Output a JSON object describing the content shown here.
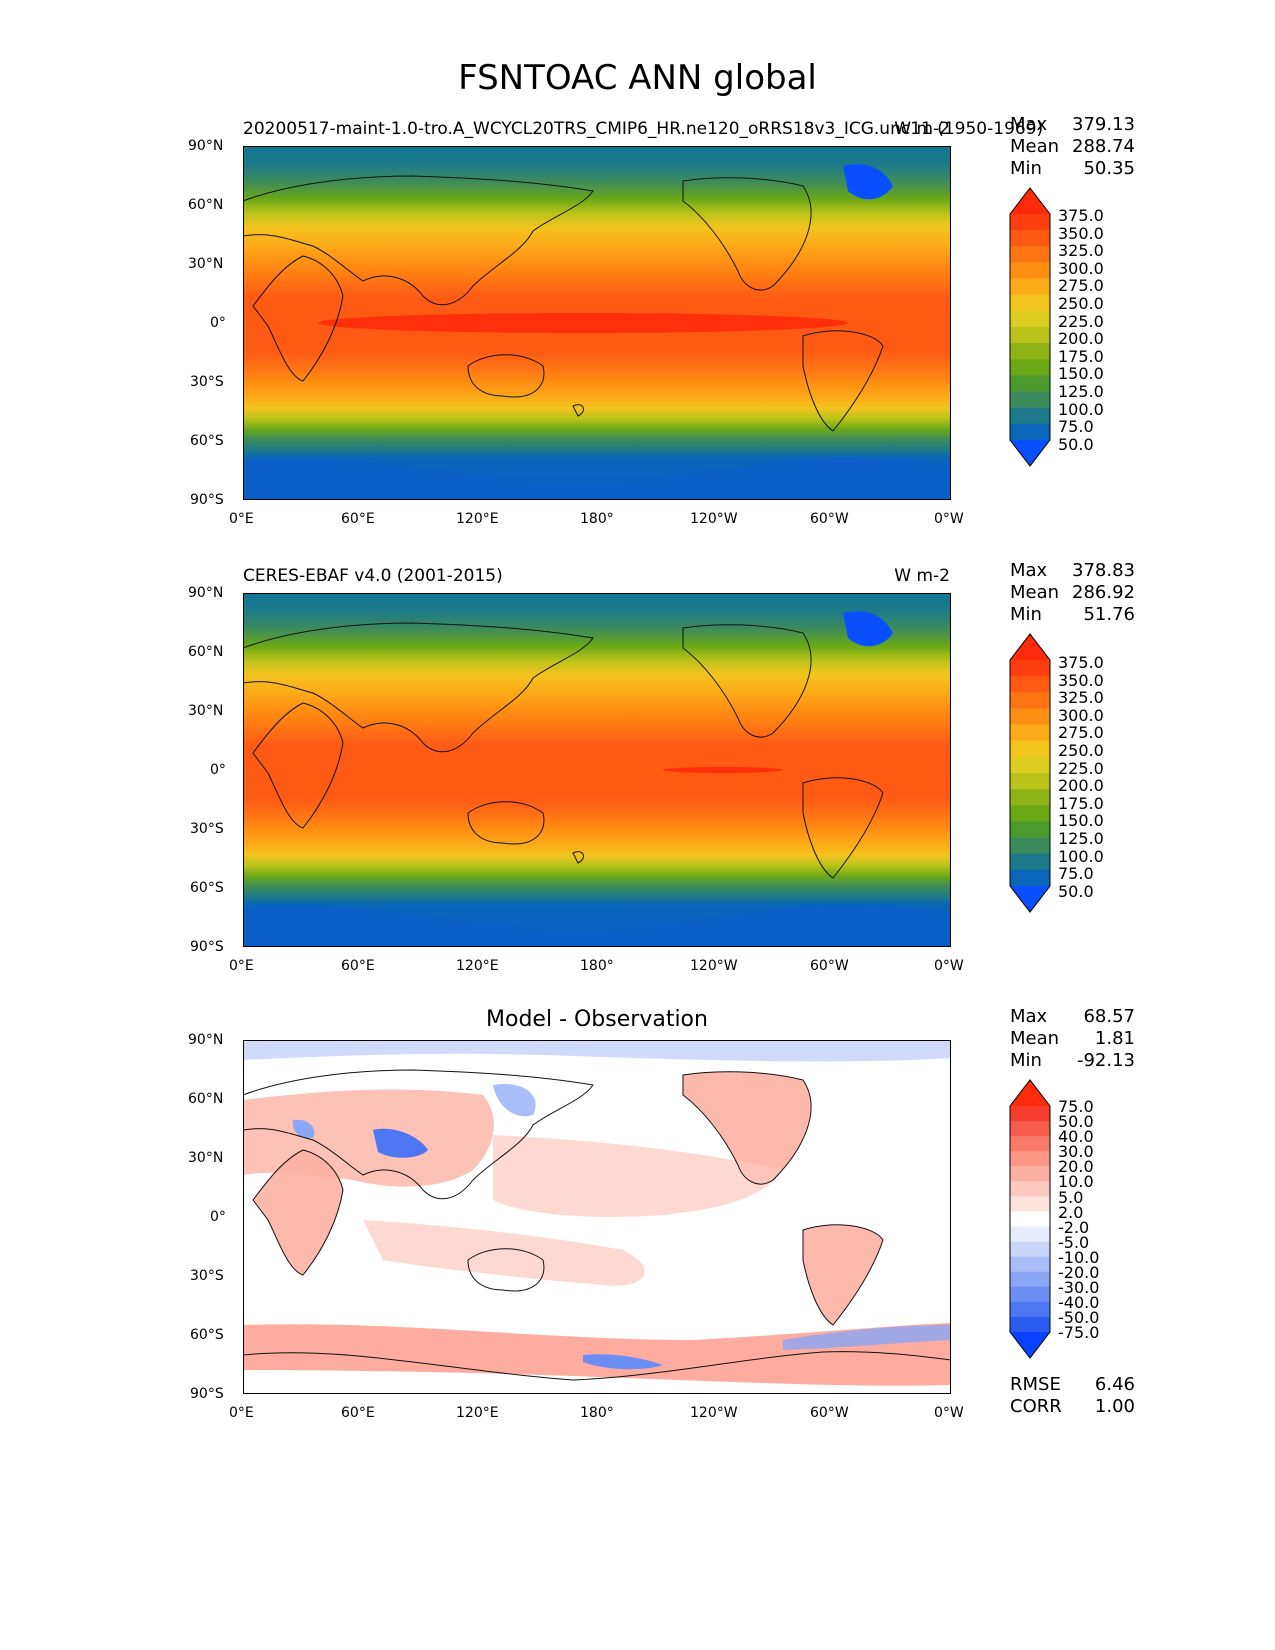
{
  "title": "FSNTOAC ANN global",
  "panels": [
    {
      "id": "test",
      "title_left": "20200517-maint-1.0-tro.A_WCYCL20TRS_CMIP6_HR.ne120_oRRS18v3_ICG.unc11 (1950-1969)",
      "title_right": "W m-2",
      "title_center": "",
      "stats": [
        {
          "label": "Max",
          "value": "379.13"
        },
        {
          "label": "Mean",
          "value": "288.74"
        },
        {
          "label": "Min",
          "value": "50.35"
        }
      ],
      "colorbar": {
        "labels": [
          "375.0",
          "350.0",
          "325.0",
          "300.0",
          "275.0",
          "250.0",
          "225.0",
          "200.0",
          "175.0",
          "150.0",
          "125.0",
          "100.0",
          "75.0",
          "50.0"
        ],
        "colors": [
          "#ff2a0a",
          "#ff3e10",
          "#ff5a14",
          "#ff7514",
          "#ff8f12",
          "#fcab18",
          "#f3c41e",
          "#dccd20",
          "#b9c31a",
          "#8fb316",
          "#6aa816",
          "#4a9a2e",
          "#3c8b5c",
          "#1c7a8a",
          "#0a66b8",
          "#0a4fff"
        ],
        "extend": "both"
      },
      "extra_stats": []
    },
    {
      "id": "reference",
      "title_left": "CERES-EBAF v4.0 (2001-2015)",
      "title_right": "W m-2",
      "title_center": "",
      "stats": [
        {
          "label": "Max",
          "value": "378.83"
        },
        {
          "label": "Mean",
          "value": "286.92"
        },
        {
          "label": "Min",
          "value": "51.76"
        }
      ],
      "colorbar": {
        "labels": [
          "375.0",
          "350.0",
          "325.0",
          "300.0",
          "275.0",
          "250.0",
          "225.0",
          "200.0",
          "175.0",
          "150.0",
          "125.0",
          "100.0",
          "75.0",
          "50.0"
        ],
        "colors": [
          "#ff2a0a",
          "#ff3e10",
          "#ff5a14",
          "#ff7514",
          "#ff8f12",
          "#fcab18",
          "#f3c41e",
          "#dccd20",
          "#b9c31a",
          "#8fb316",
          "#6aa816",
          "#4a9a2e",
          "#3c8b5c",
          "#1c7a8a",
          "#0a66b8",
          "#0a4fff"
        ],
        "extend": "both"
      },
      "extra_stats": []
    },
    {
      "id": "difference",
      "title_left": "",
      "title_right": "",
      "title_center": "Model - Observation",
      "stats": [
        {
          "label": "Max",
          "value": "68.57"
        },
        {
          "label": "Mean",
          "value": "1.81"
        },
        {
          "label": "Min",
          "value": "-92.13"
        }
      ],
      "colorbar": {
        "labels": [
          "75.0",
          "50.0",
          "40.0",
          "30.0",
          "20.0",
          "10.0",
          "5.0",
          "2.0",
          "-2.0",
          "-5.0",
          "-10.0",
          "-20.0",
          "-30.0",
          "-40.0",
          "-50.0",
          "-75.0"
        ],
        "colors": [
          "#ff2a0a",
          "#f53d2e",
          "#f75b4b",
          "#fa7a69",
          "#fc9787",
          "#fdb1a3",
          "#fec9bf",
          "#ffe3dd",
          "#ffffff",
          "#e6ecfc",
          "#cbd6fb",
          "#a9bdf8",
          "#8aa6f5",
          "#6c8ef3",
          "#4d76f2",
          "#2a5cf0",
          "#0a40ff"
        ],
        "extend": "both"
      },
      "extra_stats": [
        {
          "label": "RMSE",
          "value": "6.46"
        },
        {
          "label": "CORR",
          "value": "1.00"
        }
      ]
    }
  ],
  "map_axes": {
    "y_ticks": [
      "90°N",
      "60°N",
      "30°N",
      "0°",
      "30°S",
      "60°S",
      "90°S"
    ],
    "x_ticks": [
      "0°E",
      "60°E",
      "120°E",
      "180°",
      "120°W",
      "60°W",
      "0°W"
    ]
  }
}
